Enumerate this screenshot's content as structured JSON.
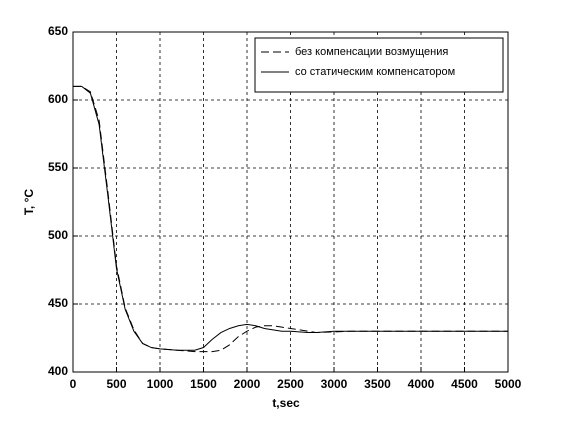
{
  "chart_data": {
    "type": "line",
    "xlabel": "t,sec",
    "ylabel": "T, °C",
    "x": [
      0,
      100,
      200,
      300,
      400,
      500,
      600,
      700,
      800,
      900,
      1000,
      1200,
      1400,
      1500,
      1600,
      1700,
      1800,
      1900,
      2000,
      2100,
      2200,
      2300,
      2400,
      2500,
      2600,
      2700,
      2800,
      3000,
      3200,
      3500,
      4000,
      5000
    ],
    "series": [
      {
        "name": "без компенсации возмущения",
        "color": "#000000",
        "dash": "dashed",
        "values": [
          610,
          610,
          606,
          585,
          533,
          478,
          447,
          431,
          421,
          418,
          417,
          416,
          415,
          415,
          415,
          416,
          420,
          426,
          430,
          433,
          434,
          434,
          433,
          432,
          431,
          430,
          429,
          429.5,
          430,
          430,
          430,
          430
        ]
      },
      {
        "name": "со статическим компенсатором",
        "color": "#000000",
        "dash": "solid",
        "values": [
          610,
          610,
          605,
          582,
          530,
          476,
          446,
          430,
          421,
          418,
          417,
          416,
          416,
          418,
          424,
          429,
          432,
          434,
          435,
          434,
          432,
          431,
          430,
          430,
          429.5,
          429,
          429,
          430,
          430,
          430,
          430,
          430
        ]
      }
    ],
    "xlim": [
      0,
      5000
    ],
    "xticks": [
      0,
      500,
      1000,
      1500,
      2000,
      2500,
      3000,
      3500,
      4000,
      4500,
      5000
    ],
    "ylim": [
      400,
      650
    ],
    "yticks": [
      400,
      450,
      500,
      550,
      600,
      650
    ],
    "grid": true,
    "legend": "northeast"
  }
}
